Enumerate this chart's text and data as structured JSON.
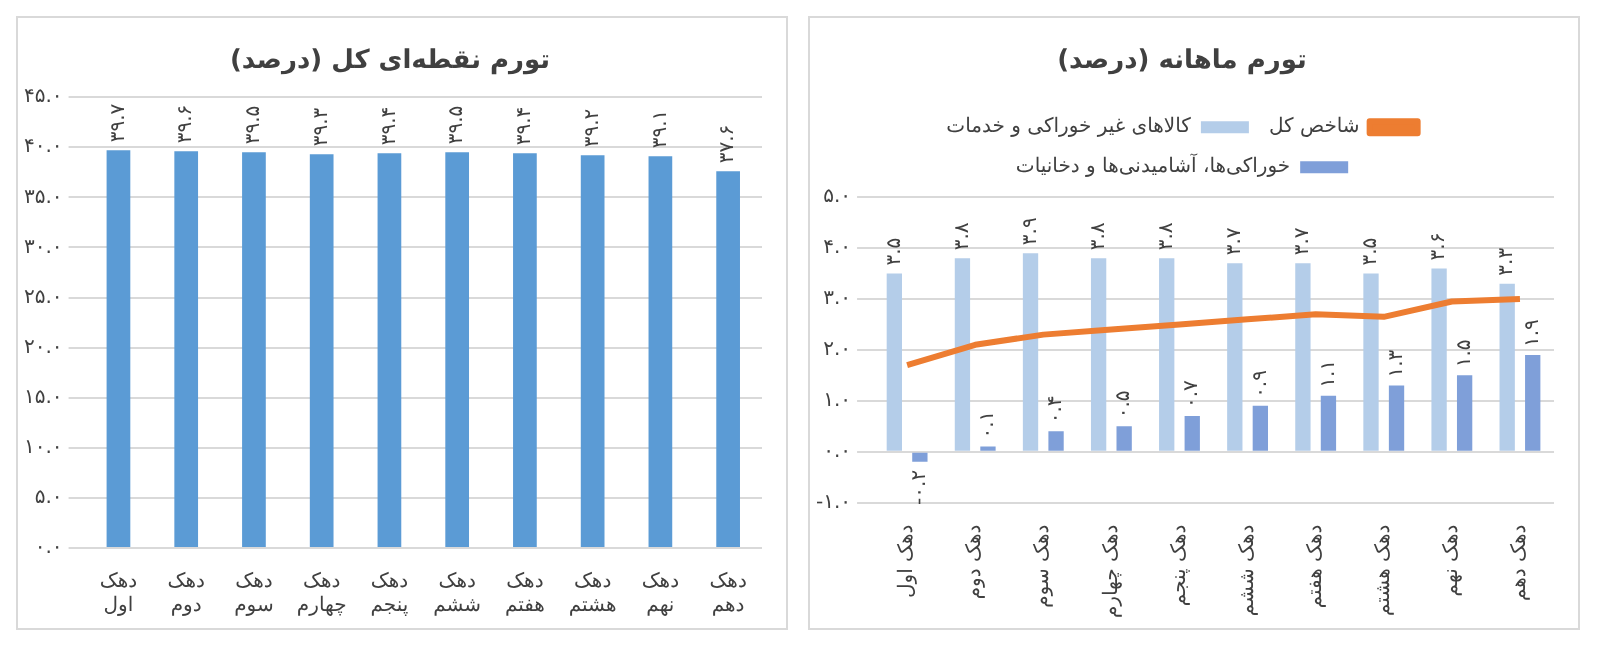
{
  "chart_data": [
    {
      "type": "bar",
      "title": "تورم نقطه‌ای کل (درصد)",
      "categories": [
        "دهک اول",
        "دهک دوم",
        "دهک سوم",
        "دهک چهارم",
        "دهک پنجم",
        "دهک ششم",
        "دهک هفتم",
        "دهک هشتم",
        "دهک نهم",
        "دهک دهم"
      ],
      "values": [
        39.7,
        39.6,
        39.5,
        39.3,
        39.4,
        39.5,
        39.4,
        39.2,
        39.1,
        37.6
      ],
      "value_labels": [
        "۳۹.۷",
        "۳۹.۶",
        "۳۹.۵",
        "۳۹.۳",
        "۳۹.۴",
        "۳۹.۵",
        "۳۹.۴",
        "۳۹.۲",
        "۳۹.۱",
        "۳۷.۶"
      ],
      "color": "#5b9bd5",
      "ylim": [
        0,
        45
      ],
      "yticks": [
        {
          "value": 0,
          "label": "۰.۰"
        },
        {
          "value": 5,
          "label": "۵.۰"
        },
        {
          "value": 10,
          "label": "۱۰.۰"
        },
        {
          "value": 15,
          "label": "۱۵.۰"
        },
        {
          "value": 20,
          "label": "۲۰.۰"
        },
        {
          "value": 25,
          "label": "۲۵.۰"
        },
        {
          "value": 30,
          "label": "۳۰.۰"
        },
        {
          "value": 35,
          "label": "۳۵.۰"
        },
        {
          "value": 40,
          "label": "۴۰.۰"
        },
        {
          "value": 45,
          "label": "۴۵.۰"
        }
      ],
      "grid": "y",
      "legend": false
    },
    {
      "type": "bar",
      "title": "تورم ماهانه (درصد)",
      "categories": [
        "دهک اول",
        "دهک دوم",
        "دهک سوم",
        "دهک چهارم",
        "دهک پنجم",
        "دهک ششم",
        "دهک هفتم",
        "دهک هشتم",
        "دهک نهم",
        "دهک دهم"
      ],
      "series": [
        {
          "name": "شاخص کل",
          "type": "line",
          "color": "#ed7d31",
          "marker": "none",
          "values": [
            1.7,
            2.1,
            2.3,
            2.4,
            2.5,
            2.6,
            2.7,
            2.65,
            2.95,
            3.0
          ]
        },
        {
          "name": "کالاهای غیر خوراکی و خدمات",
          "color": "#b4cde9",
          "values": [
            3.5,
            3.8,
            3.9,
            3.8,
            3.8,
            3.7,
            3.7,
            3.5,
            3.6,
            3.3
          ],
          "value_labels": [
            "۳.۵",
            "۳.۸",
            "۳.۹",
            "۳.۸",
            "۳.۸",
            "۳.۷",
            "۳.۷",
            "۳.۵",
            "۳.۶",
            "۳.۳"
          ]
        },
        {
          "name": "خوراکی‌ها، آشامیدنی‌ها و دخانیات",
          "color": "#7f9fd9",
          "values": [
            -0.2,
            0.1,
            0.4,
            0.5,
            0.7,
            0.9,
            1.1,
            1.3,
            1.5,
            1.9
          ],
          "value_labels": [
            "-۰.۲",
            "۰.۱",
            "۰.۴",
            "۰.۵",
            "۰.۷",
            "۰.۹",
            "۱.۱",
            "۱.۳",
            "۱.۵",
            "۱.۹"
          ]
        }
      ],
      "ylim": [
        -1,
        5
      ],
      "yticks": [
        {
          "value": -1,
          "label": "-۱.۰"
        },
        {
          "value": 0,
          "label": "۰.۰"
        },
        {
          "value": 1,
          "label": "۱.۰"
        },
        {
          "value": 2,
          "label": "۲.۰"
        },
        {
          "value": 3,
          "label": "۳.۰"
        },
        {
          "value": 4,
          "label": "۴.۰"
        },
        {
          "value": 5,
          "label": "۵.۰"
        }
      ],
      "grid": "y",
      "legend": "top"
    }
  ]
}
